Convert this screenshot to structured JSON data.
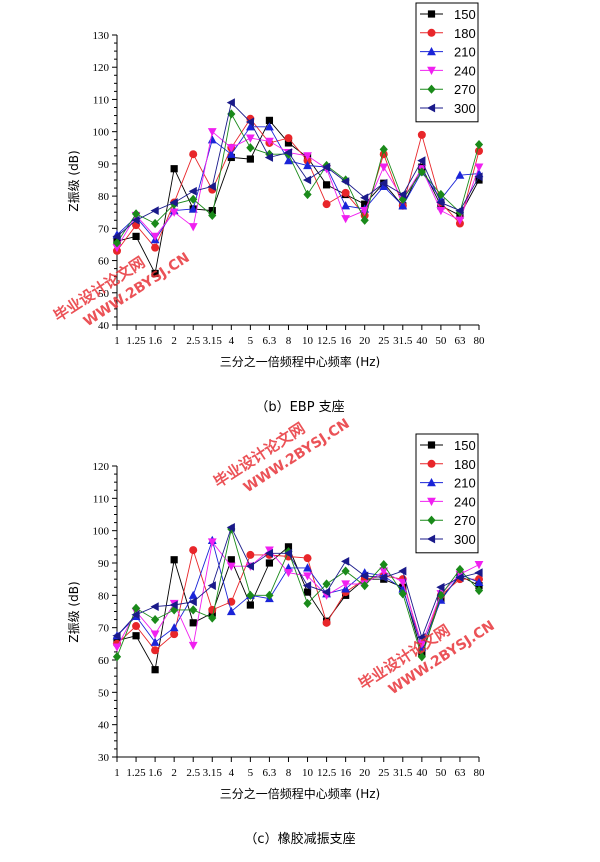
{
  "colors": {
    "150": "#000000",
    "180": "#e8262a",
    "210": "#1a24d8",
    "240": "#f020f0",
    "270": "#1a8a1a",
    "300": "#1a1a8a"
  },
  "watermark": {
    "line1": "毕业设计论文网",
    "line2": "WWW.2BYSJ.CN"
  },
  "chart_data": [
    {
      "type": "line",
      "caption": "（b）EBP 支座",
      "xlabel": "三分之一倍频程中心频率 (Hz)",
      "ylabel": "Z振级 (dB)",
      "ylim": [
        40,
        130
      ],
      "yticks": [
        40,
        50,
        60,
        70,
        80,
        90,
        100,
        110,
        120,
        130
      ],
      "categories": [
        "1",
        "1.25",
        "1.6",
        "2",
        "2.5",
        "3.15",
        "4",
        "5",
        "6.3",
        "8",
        "10",
        "12.5",
        "16",
        "20",
        "25",
        "31.5",
        "40",
        "50",
        "63",
        "80"
      ],
      "grid": false,
      "legend": "top-right",
      "series": [
        {
          "name": "150",
          "marker": "square",
          "values": [
            66,
            67.5,
            56,
            88.5,
            76,
            75.5,
            92,
            91.5,
            103.5,
            96.5,
            92,
            83.5,
            80.5,
            77.5,
            84,
            77,
            89,
            77,
            74,
            85
          ]
        },
        {
          "name": "180",
          "marker": "circle",
          "values": [
            63,
            71,
            64,
            78,
            93,
            82,
            95,
            104,
            96.5,
            98,
            91,
            77.5,
            81,
            74,
            93,
            77,
            99,
            78,
            71.5,
            94
          ]
        },
        {
          "name": "210",
          "marker": "triangle-up",
          "values": [
            68,
            73.5,
            66.5,
            75.5,
            76,
            97.5,
            93,
            101.5,
            101.5,
            91,
            89.5,
            89,
            77,
            76,
            83,
            77,
            87.5,
            79,
            86.5,
            87
          ]
        },
        {
          "name": "240",
          "marker": "triangle-down",
          "values": [
            64,
            74,
            67.5,
            75,
            70.5,
            100,
            95,
            98,
            97,
            93.5,
            92.5,
            88.5,
            73,
            75.5,
            89,
            79,
            88.5,
            75.5,
            72.5,
            89
          ]
        },
        {
          "name": "270",
          "marker": "diamond",
          "values": [
            65.5,
            74.5,
            71.5,
            77.5,
            79,
            74,
            105.5,
            95,
            93,
            93,
            80.5,
            89.5,
            85,
            72.5,
            94.5,
            79,
            87.5,
            80.5,
            75,
            96
          ]
        },
        {
          "name": "300",
          "marker": "triangle-left",
          "values": [
            67.5,
            72.5,
            75.5,
            78,
            81.5,
            83,
            109,
            103,
            92,
            93.5,
            85,
            89,
            84.5,
            79.5,
            84,
            80.5,
            91,
            78,
            75.5,
            86
          ]
        }
      ]
    },
    {
      "type": "line",
      "caption": "（c）橡胶减振支座",
      "xlabel": "三分之一倍频程中心频率 (Hz)",
      "ylabel": "Z振级 (dB)",
      "ylim": [
        30,
        120
      ],
      "yticks": [
        30,
        40,
        50,
        60,
        70,
        80,
        90,
        100,
        110,
        120
      ],
      "categories": [
        "1",
        "1.25",
        "1.6",
        "2",
        "2.5",
        "3.15",
        "4",
        "5",
        "6.3",
        "8",
        "10",
        "12.5",
        "16",
        "20",
        "25",
        "31.5",
        "40",
        "50",
        "63",
        "80"
      ],
      "grid": false,
      "legend": "top-right",
      "series": [
        {
          "name": "150",
          "marker": "square",
          "values": [
            66,
            67.5,
            57,
            91,
            71.5,
            74.5,
            91,
            77,
            90,
            95,
            81,
            72,
            80,
            85,
            85,
            82.5,
            62,
            79,
            86,
            83
          ]
        },
        {
          "name": "180",
          "marker": "circle",
          "values": [
            65,
            70.5,
            63,
            68,
            94,
            75.5,
            78,
            92.5,
            92.5,
            92,
            91.5,
            71.5,
            81,
            85,
            86,
            85,
            63.5,
            80,
            85,
            85
          ]
        },
        {
          "name": "210",
          "marker": "triangle-up",
          "values": [
            67.5,
            73.5,
            65.5,
            70,
            80,
            97,
            75,
            80,
            79,
            88.5,
            88.5,
            80.5,
            82,
            87,
            86,
            82,
            64,
            78.5,
            86.5,
            84
          ]
        },
        {
          "name": "240",
          "marker": "triangle-down",
          "values": [
            64,
            75,
            68,
            77.5,
            64.5,
            96.5,
            89,
            89,
            94,
            87,
            86,
            80,
            83.5,
            83.5,
            87.5,
            84,
            65,
            80.5,
            86.5,
            89.5
          ]
        },
        {
          "name": "270",
          "marker": "diamond",
          "values": [
            61,
            76,
            72.5,
            75.5,
            75.5,
            73,
            100.5,
            80,
            80,
            93.5,
            77.5,
            83.5,
            87.5,
            83,
            89.5,
            80.5,
            61,
            80,
            88,
            81.5
          ]
        },
        {
          "name": "300",
          "marker": "triangle-left",
          "values": [
            67.5,
            74,
            76.5,
            77,
            78,
            83,
            101,
            89,
            93,
            93,
            83,
            81,
            90.5,
            86,
            85.5,
            87.5,
            67,
            82.5,
            85.5,
            87
          ]
        }
      ]
    }
  ]
}
